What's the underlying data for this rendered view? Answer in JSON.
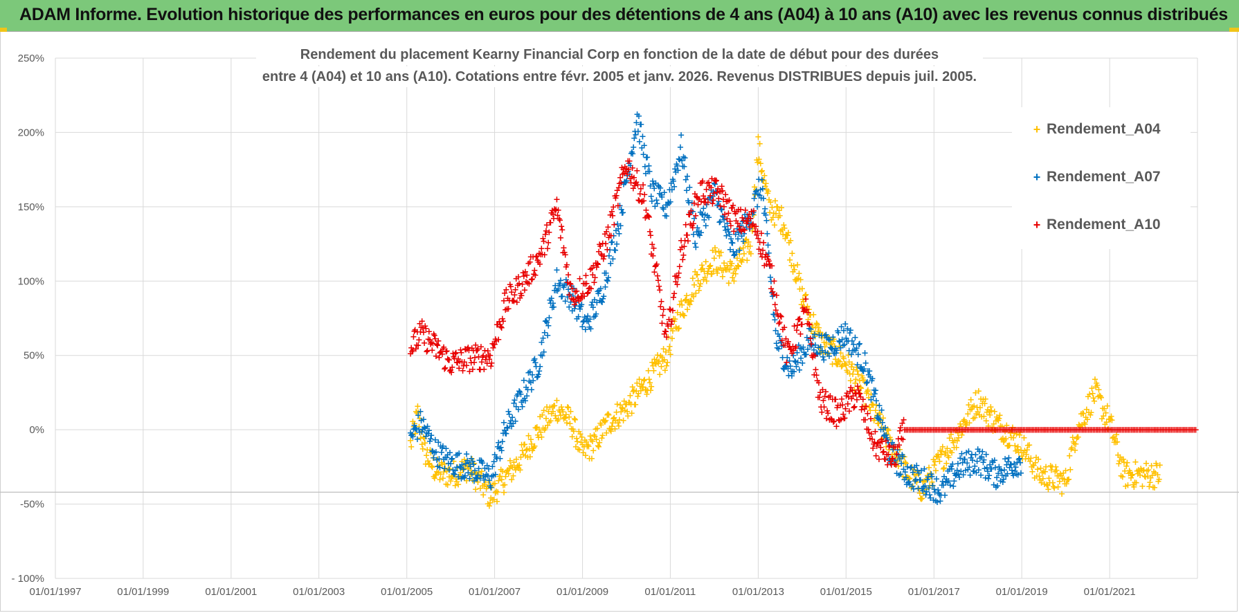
{
  "banner": {
    "title": "ADAM Informe. Evolution historique des performances en euros pour des détentions de 4 ans (A04) à 10 ans (A10) avec les revenus connus distribués"
  },
  "colors": {
    "banner_bg": "#7cc87a",
    "A04": "#ffc000",
    "A07": "#0070c0",
    "A10": "#e80000",
    "grid": "#d9d9d9",
    "text": "#595959"
  },
  "chart_data": {
    "type": "scatter",
    "title_lines": [
      "Rendement du placement Kearny Financial Corp en fonction de la date de début pour des durées",
      "entre 4 (A04) et 10 ans (A10).  Cotations entre févr. 2005 et janv. 2026. Revenus DISTRIBUES depuis juil. 2005."
    ],
    "x_ticks": [
      "01/01/1997",
      "01/01/1999",
      "01/01/2001",
      "01/01/2003",
      "01/01/2005",
      "01/01/2007",
      "01/01/2009",
      "01/01/2011",
      "01/01/2013",
      "01/01/2015",
      "01/01/2017",
      "01/01/2019",
      "01/01/2021"
    ],
    "xlim": [
      "1997-01-01",
      "2023-01-01"
    ],
    "y_ticks": [
      "250%",
      "200%",
      "150%",
      "100%",
      "50%",
      "0%",
      "-50%",
      "- 100%"
    ],
    "ylim": [
      -100,
      250
    ],
    "grid": true,
    "legend_position": "right",
    "series": [
      {
        "name": "Rendement_A04",
        "color_key": "A04",
        "points": [
          [
            "2005-02-01",
            -10
          ],
          [
            "2005-04-01",
            10
          ],
          [
            "2005-06-01",
            -15
          ],
          [
            "2005-09-01",
            -28
          ],
          [
            "2006-01-01",
            -30
          ],
          [
            "2006-06-01",
            -25
          ],
          [
            "2006-12-01",
            -45
          ],
          [
            "2007-03-01",
            -35
          ],
          [
            "2007-08-01",
            -20
          ],
          [
            "2008-01-01",
            0
          ],
          [
            "2008-06-01",
            15
          ],
          [
            "2008-10-01",
            5
          ],
          [
            "2009-01-01",
            -15
          ],
          [
            "2009-04-01",
            -10
          ],
          [
            "2009-08-01",
            5
          ],
          [
            "2010-01-01",
            15
          ],
          [
            "2010-06-01",
            30
          ],
          [
            "2010-12-01",
            50
          ],
          [
            "2011-03-01",
            75
          ],
          [
            "2011-08-01",
            100
          ],
          [
            "2012-01-01",
            115
          ],
          [
            "2012-06-01",
            105
          ],
          [
            "2012-11-01",
            125
          ],
          [
            "2013-01-01",
            190
          ],
          [
            "2013-04-01",
            150
          ],
          [
            "2013-08-01",
            140
          ],
          [
            "2014-01-01",
            90
          ],
          [
            "2014-06-01",
            60
          ],
          [
            "2015-01-01",
            45
          ],
          [
            "2015-06-01",
            25
          ],
          [
            "2016-01-01",
            -10
          ],
          [
            "2016-06-01",
            -30
          ],
          [
            "2016-10-01",
            -40
          ],
          [
            "2017-03-01",
            -20
          ],
          [
            "2017-08-01",
            0
          ],
          [
            "2018-01-01",
            20
          ],
          [
            "2018-06-01",
            5
          ],
          [
            "2019-01-01",
            -10
          ],
          [
            "2019-06-01",
            -30
          ],
          [
            "2020-01-01",
            -35
          ],
          [
            "2020-04-01",
            0
          ],
          [
            "2020-09-01",
            25
          ],
          [
            "2021-01-01",
            5
          ],
          [
            "2021-05-01",
            -30
          ],
          [
            "2022-03-01",
            -30
          ]
        ]
      },
      {
        "name": "Rendement_A07",
        "color_key": "A07",
        "points": [
          [
            "2005-02-01",
            -5
          ],
          [
            "2005-05-01",
            5
          ],
          [
            "2005-09-01",
            -15
          ],
          [
            "2006-01-01",
            -22
          ],
          [
            "2006-06-01",
            -25
          ],
          [
            "2006-12-01",
            -32
          ],
          [
            "2007-04-01",
            0
          ],
          [
            "2007-09-01",
            25
          ],
          [
            "2008-01-01",
            45
          ],
          [
            "2008-06-01",
            100
          ],
          [
            "2008-10-01",
            90
          ],
          [
            "2009-02-01",
            70
          ],
          [
            "2009-06-01",
            90
          ],
          [
            "2009-11-01",
            140
          ],
          [
            "2010-04-01",
            210
          ],
          [
            "2010-08-01",
            160
          ],
          [
            "2010-12-01",
            150
          ],
          [
            "2011-04-01",
            190
          ],
          [
            "2011-08-01",
            130
          ],
          [
            "2012-01-01",
            160
          ],
          [
            "2012-06-01",
            120
          ],
          [
            "2012-10-01",
            140
          ],
          [
            "2013-02-01",
            165
          ],
          [
            "2013-06-01",
            60
          ],
          [
            "2013-10-01",
            40
          ],
          [
            "2014-03-01",
            60
          ],
          [
            "2014-08-01",
            55
          ],
          [
            "2015-01-01",
            65
          ],
          [
            "2015-06-01",
            45
          ],
          [
            "2016-01-01",
            -15
          ],
          [
            "2016-06-01",
            -30
          ],
          [
            "2016-11-01",
            -35
          ],
          [
            "2017-03-01",
            -42
          ],
          [
            "2017-08-01",
            -25
          ],
          [
            "2018-01-01",
            -20
          ],
          [
            "2018-06-01",
            -30
          ],
          [
            "2019-01-01",
            -20
          ]
        ]
      },
      {
        "name": "Rendement_A10",
        "color_key": "A10",
        "points": [
          [
            "2005-02-01",
            55
          ],
          [
            "2005-05-01",
            65
          ],
          [
            "2005-09-01",
            55
          ],
          [
            "2006-01-01",
            45
          ],
          [
            "2006-06-01",
            48
          ],
          [
            "2006-12-01",
            50
          ],
          [
            "2007-04-01",
            85
          ],
          [
            "2007-09-01",
            100
          ],
          [
            "2008-02-01",
            120
          ],
          [
            "2008-06-01",
            150
          ],
          [
            "2008-10-01",
            90
          ],
          [
            "2009-03-01",
            100
          ],
          [
            "2009-08-01",
            130
          ],
          [
            "2010-01-01",
            180
          ],
          [
            "2010-06-01",
            155
          ],
          [
            "2010-12-01",
            60
          ],
          [
            "2011-04-01",
            120
          ],
          [
            "2011-09-01",
            160
          ],
          [
            "2012-02-01",
            160
          ],
          [
            "2012-07-01",
            140
          ],
          [
            "2012-12-01",
            140
          ],
          [
            "2013-05-01",
            100
          ],
          [
            "2013-09-01",
            50
          ],
          [
            "2014-02-01",
            80
          ],
          [
            "2014-06-01",
            20
          ],
          [
            "2014-11-01",
            10
          ],
          [
            "2015-04-01",
            25
          ],
          [
            "2015-09-01",
            -10
          ],
          [
            "2016-02-01",
            -20
          ],
          [
            "2016-05-01",
            0
          ],
          [
            "2018-01-01",
            0
          ],
          [
            "2020-01-01",
            0
          ],
          [
            "2022-12-31",
            0
          ]
        ]
      }
    ]
  }
}
